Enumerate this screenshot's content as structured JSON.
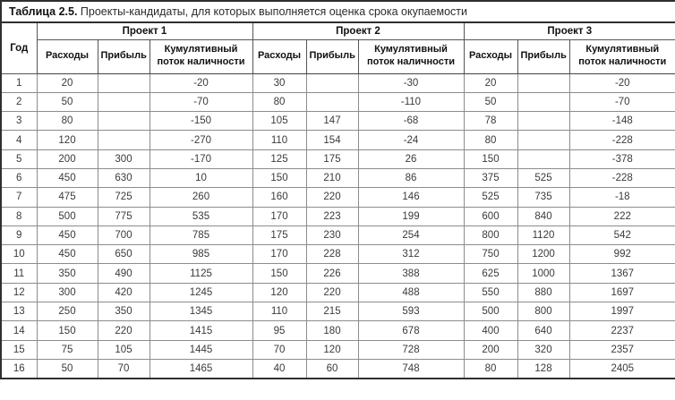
{
  "table": {
    "caption_bold": "Таблица 2.5.",
    "caption_rest": " Проекты-кандидаты, для которых выполняется оценка срока окупаемости",
    "col_year": "Год",
    "groups": [
      {
        "label": "Проект 1"
      },
      {
        "label": "Проект 2"
      },
      {
        "label": "Проект 3"
      }
    ],
    "sub_headers": [
      "Расходы",
      "Прибыль",
      "Кумулятивный поток наличности"
    ],
    "rows": [
      [
        "1",
        "20",
        "",
        "-20",
        "30",
        "",
        "-30",
        "20",
        "",
        "-20"
      ],
      [
        "2",
        "50",
        "",
        "-70",
        "80",
        "",
        "-110",
        "50",
        "",
        "-70"
      ],
      [
        "3",
        "80",
        "",
        "-150",
        "105",
        "147",
        "-68",
        "78",
        "",
        "-148"
      ],
      [
        "4",
        "120",
        "",
        "-270",
        "110",
        "154",
        "-24",
        "80",
        "",
        "-228"
      ],
      [
        "5",
        "200",
        "300",
        "-170",
        "125",
        "175",
        "26",
        "150",
        "",
        "-378"
      ],
      [
        "6",
        "450",
        "630",
        "10",
        "150",
        "210",
        "86",
        "375",
        "525",
        "-228"
      ],
      [
        "7",
        "475",
        "725",
        "260",
        "160",
        "220",
        "146",
        "525",
        "735",
        "-18"
      ],
      [
        "8",
        "500",
        "775",
        "535",
        "170",
        "223",
        "199",
        "600",
        "840",
        "222"
      ],
      [
        "9",
        "450",
        "700",
        "785",
        "175",
        "230",
        "254",
        "800",
        "1120",
        "542"
      ],
      [
        "10",
        "450",
        "650",
        "985",
        "170",
        "228",
        "312",
        "750",
        "1200",
        "992"
      ],
      [
        "11",
        "350",
        "490",
        "1125",
        "150",
        "226",
        "388",
        "625",
        "1000",
        "1367"
      ],
      [
        "12",
        "300",
        "420",
        "1245",
        "120",
        "220",
        "488",
        "550",
        "880",
        "1697"
      ],
      [
        "13",
        "250",
        "350",
        "1345",
        "110",
        "215",
        "593",
        "500",
        "800",
        "1997"
      ],
      [
        "14",
        "150",
        "220",
        "1415",
        "95",
        "180",
        "678",
        "400",
        "640",
        "2237"
      ],
      [
        "15",
        "75",
        "105",
        "1445",
        "70",
        "120",
        "728",
        "200",
        "320",
        "2357"
      ],
      [
        "16",
        "50",
        "70",
        "1465",
        "40",
        "60",
        "748",
        "80",
        "128",
        "2405"
      ]
    ]
  }
}
